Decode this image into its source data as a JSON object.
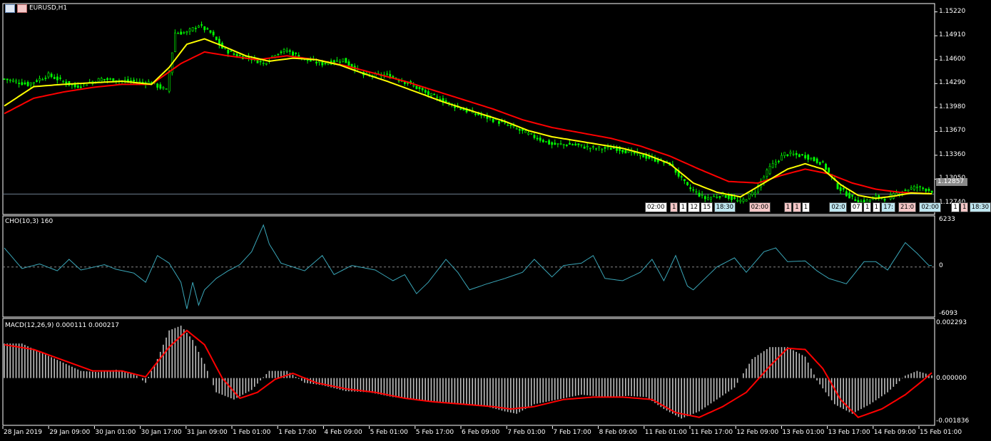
{
  "window": {
    "title": "EURUSD,H1",
    "icon": "chart-window-icon"
  },
  "price_axis": {
    "ticks": [
      "1.15220",
      "1.14910",
      "1.14600",
      "1.14290",
      "1.13980",
      "1.13670",
      "1.13360",
      "1.13050",
      "1.12740"
    ],
    "current": "1.12857"
  },
  "session_tags": [
    {
      "text": "02:00",
      "bg": "#ffffff"
    },
    {
      "text": "1",
      "bg": "#f4c7c7"
    },
    {
      "text": "1",
      "bg": "#ffffff"
    },
    {
      "text": "12",
      "bg": "#ffffff"
    },
    {
      "text": "15",
      "bg": "#ffffff"
    },
    {
      "text": "18:30",
      "bg": "#bfe6f0"
    },
    {
      "text": "02:00",
      "bg": "#f4c7c7"
    },
    {
      "text": "1",
      "bg": "#f4c7c7"
    },
    {
      "text": "1",
      "bg": "#f4c7c7"
    },
    {
      "text": "1",
      "bg": "#ffffff"
    },
    {
      "text": "02:0",
      "bg": "#bfe6f0"
    },
    {
      "text": "07",
      "bg": "#ffffff"
    },
    {
      "text": "1",
      "bg": "#ffffff"
    },
    {
      "text": "1",
      "bg": "#ffffff"
    },
    {
      "text": "17:",
      "bg": "#bfe6f0"
    },
    {
      "text": "21:0",
      "bg": "#f4c7c7"
    },
    {
      "text": "02:00",
      "bg": "#bfe6f0"
    },
    {
      "text": "1",
      "bg": "#ffffff"
    },
    {
      "text": "1",
      "bg": "#f4c7c7"
    },
    {
      "text": "18:30",
      "bg": "#bfe6f0"
    }
  ],
  "cho": {
    "label": "CHO(10,3) 160",
    "max": "6233",
    "zero": "0",
    "min": "-6093"
  },
  "macd": {
    "label": "MACD(12,26,9) 0.000111 0.000217",
    "max": "0.002293",
    "zero": "0.000000",
    "min": "-0.001836"
  },
  "time_axis": [
    "28 Jan 2019",
    "29 Jan 09:00",
    "30 Jan 01:00",
    "30 Jan 17:00",
    "31 Jan 09:00",
    "1 Feb 01:00",
    "1 Feb 17:00",
    "4 Feb 09:00",
    "5 Feb 01:00",
    "5 Feb 17:00",
    "6 Feb 09:00",
    "7 Feb 01:00",
    "7 Feb 17:00",
    "8 Feb 09:00",
    "11 Feb 01:00",
    "11 Feb 17:00",
    "12 Feb 09:00",
    "13 Feb 01:00",
    "13 Feb 17:00",
    "14 Feb 09:00",
    "15 Feb 01:00"
  ],
  "colors": {
    "bull": "#00ff00",
    "bear": "#00ff00",
    "ma_fast": "#ffff00",
    "ma_slow": "#ff0000",
    "cho": "#3aa6b8",
    "macd_hist": "#c0c0c0",
    "macd_signal": "#ff0000",
    "grid": "#ffffff"
  },
  "chart_data": {
    "type": "line",
    "price_knots": [
      [
        0,
        1.1435
      ],
      [
        8,
        1.1428
      ],
      [
        15,
        1.144
      ],
      [
        24,
        1.1425
      ],
      [
        33,
        1.1435
      ],
      [
        42,
        1.1432
      ],
      [
        50,
        1.143
      ],
      [
        55,
        1.142
      ],
      [
        58,
        1.1495
      ],
      [
        62,
        1.1495
      ],
      [
        66,
        1.1505
      ],
      [
        70,
        1.1495
      ],
      [
        74,
        1.1475
      ],
      [
        79,
        1.1465
      ],
      [
        84,
        1.1462
      ],
      [
        88,
        1.1455
      ],
      [
        92,
        1.1468
      ],
      [
        96,
        1.1472
      ],
      [
        102,
        1.146
      ],
      [
        108,
        1.1455
      ],
      [
        115,
        1.146
      ],
      [
        122,
        1.144
      ],
      [
        130,
        1.144
      ],
      [
        137,
        1.143
      ],
      [
        144,
        1.1415
      ],
      [
        150,
        1.1405
      ],
      [
        156,
        1.1395
      ],
      [
        164,
        1.1385
      ],
      [
        171,
        1.1375
      ],
      [
        180,
        1.136
      ],
      [
        186,
        1.135
      ],
      [
        193,
        1.135
      ],
      [
        200,
        1.1345
      ],
      [
        208,
        1.1345
      ],
      [
        217,
        1.1335
      ],
      [
        226,
        1.1325
      ],
      [
        232,
        1.1295
      ],
      [
        238,
        1.128
      ],
      [
        244,
        1.1285
      ],
      [
        250,
        1.1275
      ],
      [
        255,
        1.129
      ],
      [
        260,
        1.132
      ],
      [
        265,
        1.1338
      ],
      [
        272,
        1.1335
      ],
      [
        278,
        1.1325
      ],
      [
        283,
        1.1295
      ],
      [
        288,
        1.128
      ],
      [
        292,
        1.1275
      ],
      [
        296,
        1.1282
      ],
      [
        300,
        1.128
      ],
      [
        305,
        1.129
      ],
      [
        310,
        1.1295
      ],
      [
        315,
        1.129
      ]
    ],
    "ma_fast_knots": [
      [
        0,
        1.14
      ],
      [
        10,
        1.1425
      ],
      [
        20,
        1.1428
      ],
      [
        30,
        1.143
      ],
      [
        40,
        1.1432
      ],
      [
        50,
        1.1428
      ],
      [
        56,
        1.145
      ],
      [
        62,
        1.148
      ],
      [
        68,
        1.1487
      ],
      [
        74,
        1.1478
      ],
      [
        82,
        1.1465
      ],
      [
        90,
        1.1458
      ],
      [
        98,
        1.1462
      ],
      [
        106,
        1.146
      ],
      [
        114,
        1.1453
      ],
      [
        122,
        1.1442
      ],
      [
        130,
        1.1432
      ],
      [
        140,
        1.1418
      ],
      [
        150,
        1.1404
      ],
      [
        160,
        1.1392
      ],
      [
        170,
        1.138
      ],
      [
        178,
        1.1368
      ],
      [
        186,
        1.136
      ],
      [
        194,
        1.1355
      ],
      [
        202,
        1.135
      ],
      [
        210,
        1.1345
      ],
      [
        218,
        1.1337
      ],
      [
        226,
        1.1325
      ],
      [
        234,
        1.13
      ],
      [
        242,
        1.1288
      ],
      [
        250,
        1.1282
      ],
      [
        258,
        1.13
      ],
      [
        266,
        1.1318
      ],
      [
        272,
        1.1325
      ],
      [
        278,
        1.1318
      ],
      [
        284,
        1.1298
      ],
      [
        290,
        1.1284
      ],
      [
        296,
        1.128
      ],
      [
        302,
        1.1283
      ],
      [
        308,
        1.1287
      ],
      [
        315,
        1.1286
      ]
    ],
    "ma_slow_knots": [
      [
        0,
        1.139
      ],
      [
        10,
        1.141
      ],
      [
        20,
        1.1418
      ],
      [
        30,
        1.1424
      ],
      [
        40,
        1.1428
      ],
      [
        50,
        1.1428
      ],
      [
        60,
        1.1455
      ],
      [
        68,
        1.147
      ],
      [
        76,
        1.1465
      ],
      [
        86,
        1.146
      ],
      [
        96,
        1.1465
      ],
      [
        106,
        1.146
      ],
      [
        116,
        1.1452
      ],
      [
        126,
        1.1442
      ],
      [
        136,
        1.1432
      ],
      [
        146,
        1.142
      ],
      [
        156,
        1.1408
      ],
      [
        166,
        1.1396
      ],
      [
        176,
        1.1382
      ],
      [
        186,
        1.1372
      ],
      [
        196,
        1.1365
      ],
      [
        206,
        1.1358
      ],
      [
        216,
        1.1348
      ],
      [
        226,
        1.1335
      ],
      [
        236,
        1.1318
      ],
      [
        246,
        1.1302
      ],
      [
        256,
        1.13
      ],
      [
        264,
        1.131
      ],
      [
        272,
        1.1318
      ],
      [
        280,
        1.1312
      ],
      [
        288,
        1.13
      ],
      [
        296,
        1.1292
      ],
      [
        304,
        1.1288
      ],
      [
        315,
        1.1286
      ]
    ],
    "cho_knots": [
      [
        0,
        2500
      ],
      [
        6,
        -200
      ],
      [
        12,
        400
      ],
      [
        18,
        -500
      ],
      [
        22,
        1000
      ],
      [
        26,
        -400
      ],
      [
        34,
        300
      ],
      [
        38,
        -300
      ],
      [
        44,
        -800
      ],
      [
        48,
        -2000
      ],
      [
        52,
        1500
      ],
      [
        56,
        500
      ],
      [
        60,
        -2000
      ],
      [
        62,
        -5500
      ],
      [
        64,
        -2000
      ],
      [
        66,
        -5000
      ],
      [
        68,
        -3000
      ],
      [
        72,
        -1500
      ],
      [
        76,
        -500
      ],
      [
        80,
        300
      ],
      [
        84,
        2000
      ],
      [
        88,
        5500
      ],
      [
        90,
        3000
      ],
      [
        94,
        500
      ],
      [
        98,
        0
      ],
      [
        102,
        -500
      ],
      [
        108,
        1500
      ],
      [
        112,
        -1000
      ],
      [
        118,
        200
      ],
      [
        126,
        -400
      ],
      [
        132,
        -1800
      ],
      [
        136,
        -1000
      ],
      [
        140,
        -3500
      ],
      [
        144,
        -2000
      ],
      [
        150,
        1000
      ],
      [
        154,
        -700
      ],
      [
        158,
        -3000
      ],
      [
        164,
        -2200
      ],
      [
        170,
        -1500
      ],
      [
        176,
        -700
      ],
      [
        180,
        1000
      ],
      [
        186,
        -1300
      ],
      [
        190,
        200
      ],
      [
        196,
        500
      ],
      [
        200,
        1500
      ],
      [
        204,
        -1500
      ],
      [
        210,
        -1800
      ],
      [
        216,
        -700
      ],
      [
        220,
        1000
      ],
      [
        224,
        -1800
      ],
      [
        228,
        1500
      ],
      [
        232,
        -2500
      ],
      [
        234,
        -3000
      ],
      [
        238,
        -1500
      ],
      [
        242,
        0
      ],
      [
        248,
        1200
      ],
      [
        252,
        -700
      ],
      [
        258,
        2000
      ],
      [
        262,
        2500
      ],
      [
        266,
        700
      ],
      [
        272,
        800
      ],
      [
        276,
        -500
      ],
      [
        280,
        -1500
      ],
      [
        286,
        -2200
      ],
      [
        292,
        700
      ],
      [
        296,
        700
      ],
      [
        300,
        -400
      ],
      [
        306,
        3200
      ],
      [
        310,
        1800
      ],
      [
        314,
        200
      ]
    ],
    "macd_knots": [
      [
        0,
        0.00145
      ],
      [
        6,
        0.00145
      ],
      [
        12,
        0.0011
      ],
      [
        20,
        0.00065
      ],
      [
        26,
        0.0003
      ],
      [
        32,
        0.00025
      ],
      [
        38,
        0.00035
      ],
      [
        44,
        0.0002
      ],
      [
        48,
        -0.0002
      ],
      [
        52,
        0.0008
      ],
      [
        56,
        0.002
      ],
      [
        60,
        0.0022
      ],
      [
        64,
        0.0016
      ],
      [
        68,
        0.0006
      ],
      [
        72,
        -0.0006
      ],
      [
        78,
        -0.0009
      ],
      [
        84,
        -0.0005
      ],
      [
        90,
        0.0003
      ],
      [
        96,
        0.0003
      ],
      [
        102,
        -0.0002
      ],
      [
        108,
        -0.0003
      ],
      [
        116,
        -0.00055
      ],
      [
        124,
        -0.0006
      ],
      [
        132,
        -0.0008
      ],
      [
        140,
        -0.0009
      ],
      [
        148,
        -0.001
      ],
      [
        156,
        -0.0011
      ],
      [
        164,
        -0.0012
      ],
      [
        170,
        -0.0014
      ],
      [
        174,
        -0.0015
      ],
      [
        180,
        -0.0011
      ],
      [
        188,
        -0.0009
      ],
      [
        196,
        -0.0007
      ],
      [
        204,
        -0.0008
      ],
      [
        212,
        -0.00075
      ],
      [
        218,
        -0.0008
      ],
      [
        224,
        -0.0013
      ],
      [
        230,
        -0.0017
      ],
      [
        236,
        -0.0014
      ],
      [
        242,
        -0.0009
      ],
      [
        248,
        -0.0004
      ],
      [
        254,
        0.0008
      ],
      [
        260,
        0.0013
      ],
      [
        266,
        0.0013
      ],
      [
        272,
        0.0009
      ],
      [
        276,
        -0.0001
      ],
      [
        282,
        -0.0011
      ],
      [
        288,
        -0.0015
      ],
      [
        294,
        -0.0011
      ],
      [
        300,
        -0.0006
      ],
      [
        306,
        0.0001
      ],
      [
        310,
        0.0003
      ],
      [
        315,
        0.00011
      ]
    ],
    "signal_knots": [
      [
        0,
        0.0014
      ],
      [
        10,
        0.0012
      ],
      [
        20,
        0.00075
      ],
      [
        30,
        0.0003
      ],
      [
        40,
        0.0003
      ],
      [
        48,
        5e-05
      ],
      [
        56,
        0.0013
      ],
      [
        62,
        0.002
      ],
      [
        68,
        0.0014
      ],
      [
        74,
        0.0
      ],
      [
        80,
        -0.00085
      ],
      [
        86,
        -0.0006
      ],
      [
        92,
        -5e-05
      ],
      [
        98,
        0.0002
      ],
      [
        106,
        -0.0002
      ],
      [
        116,
        -0.00045
      ],
      [
        126,
        -0.0006
      ],
      [
        136,
        -0.00085
      ],
      [
        146,
        -0.001
      ],
      [
        156,
        -0.0011
      ],
      [
        166,
        -0.0012
      ],
      [
        172,
        -0.0013
      ],
      [
        180,
        -0.0012
      ],
      [
        190,
        -0.0009
      ],
      [
        200,
        -0.0008
      ],
      [
        210,
        -0.0008
      ],
      [
        220,
        -0.0009
      ],
      [
        228,
        -0.00145
      ],
      [
        236,
        -0.00165
      ],
      [
        244,
        -0.0012
      ],
      [
        252,
        -0.0006
      ],
      [
        260,
        0.0005
      ],
      [
        266,
        0.00125
      ],
      [
        272,
        0.0012
      ],
      [
        278,
        0.0004
      ],
      [
        284,
        -0.0009
      ],
      [
        290,
        -0.00165
      ],
      [
        298,
        -0.0013
      ],
      [
        306,
        -0.0007
      ],
      [
        312,
        -0.0001
      ],
      [
        315,
        0.00022
      ]
    ]
  }
}
